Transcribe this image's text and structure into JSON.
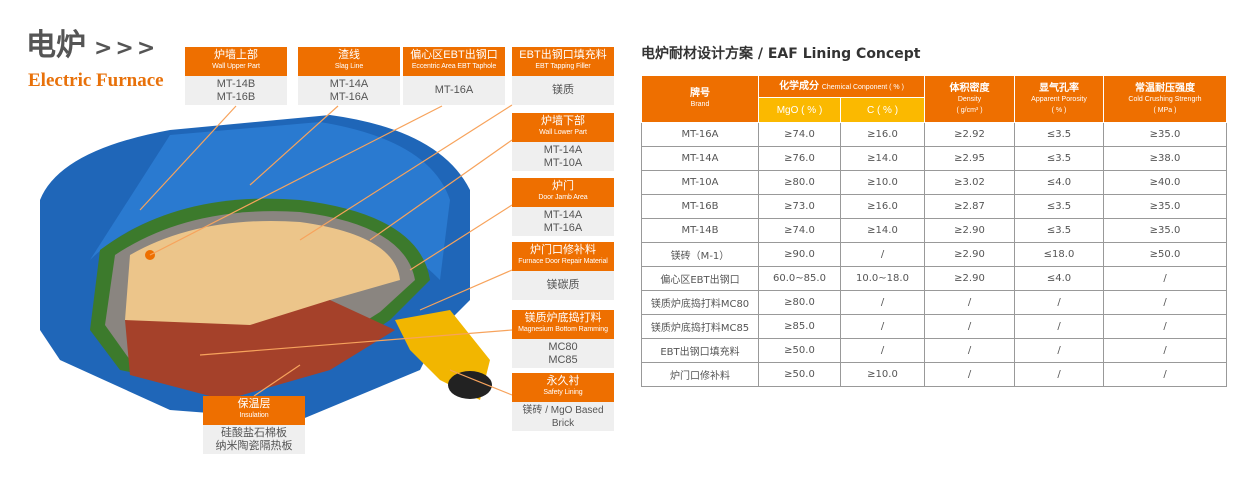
{
  "header": {
    "title_cn": "电炉",
    "arrows": ">>>",
    "title_en": "Electric Furnace"
  },
  "labels": [
    {
      "cn": "炉墙上部",
      "en": "Wall Upper Part",
      "values": [
        "MT-14B",
        "MT-16B"
      ]
    },
    {
      "cn": "渣线",
      "en": "Slag Line",
      "values": [
        "MT-14A",
        "MT-16A"
      ]
    },
    {
      "cn": "偏心区EBT出钢口",
      "en": "Eccentric Area EBT Taphole",
      "values": [
        "MT-16A"
      ]
    },
    {
      "cn": "EBT出钢口填充料",
      "en": "EBT Tapping Filler",
      "values": [
        "镁质"
      ]
    },
    {
      "cn": "炉墙下部",
      "en": "Wall Lower Part",
      "values": [
        "MT-14A",
        "MT-10A"
      ]
    },
    {
      "cn": "炉门",
      "en": "Door Jamb Area",
      "values": [
        "MT-14A",
        "MT-16A"
      ]
    },
    {
      "cn": "炉门口修补料",
      "en": "Furnace Door Repair Material",
      "values": [
        "镁碳质"
      ]
    },
    {
      "cn": "镁质炉底捣打料",
      "en": "Magnesium Bottom Ramming",
      "values": [
        "MC80",
        "MC85"
      ]
    },
    {
      "cn": "永久衬",
      "en": "Safety Lining",
      "values": [
        "镁砖 / MgO Based Brick"
      ]
    },
    {
      "cn": "保温层",
      "en": "Insulation",
      "values": [
        "硅酸盐石棉板",
        "纳米陶瓷隔热板"
      ]
    }
  ],
  "table": {
    "title": "电炉耐材设计方案 / EAF Lining Concept",
    "headers": {
      "brand": {
        "cn": "牌号",
        "en": "Brand"
      },
      "chem": {
        "cn": "化学成分",
        "en": "Chemical Conponent ( % )"
      },
      "mgo": "MgO ( % )",
      "c": "C ( % )",
      "density": {
        "cn": "体积密度",
        "en": "Density",
        "unit": "( g/cm³ )"
      },
      "porosity": {
        "cn": "显气孔率",
        "en": "Apparent Porosity",
        "unit": "( % )"
      },
      "strength": {
        "cn": "常温耐压强度",
        "en": "Cold Crushing Strengrh",
        "unit": "( MPa )"
      }
    },
    "rows": [
      [
        "MT-16A",
        "≥74.0",
        "≥16.0",
        "≥2.92",
        "≤3.5",
        "≥35.0"
      ],
      [
        "MT-14A",
        "≥76.0",
        "≥14.0",
        "≥2.95",
        "≤3.5",
        "≥38.0"
      ],
      [
        "MT-10A",
        "≥80.0",
        "≥10.0",
        "≥3.02",
        "≤4.0",
        "≥40.0"
      ],
      [
        "MT-16B",
        "≥73.0",
        "≥16.0",
        "≥2.87",
        "≤3.5",
        "≥35.0"
      ],
      [
        "MT-14B",
        "≥74.0",
        "≥14.0",
        "≥2.90",
        "≤3.5",
        "≥35.0"
      ],
      [
        "镁砖（M-1）",
        "≥90.0",
        "/",
        "≥2.90",
        "≤18.0",
        "≥50.0"
      ],
      [
        "偏心区EBT出钢口",
        "60.0~85.0",
        "10.0~18.0",
        "≥2.90",
        "≤4.0",
        "/"
      ],
      [
        "镁质炉底捣打料MC80",
        "≥80.0",
        "/",
        "/",
        "/",
        "/"
      ],
      [
        "镁质炉底捣打料MC85",
        "≥85.0",
        "/",
        "/",
        "/",
        "/"
      ],
      [
        "EBT出钢口填充料",
        "≥50.0",
        "/",
        "/",
        "/",
        "/"
      ],
      [
        "炉门口修补料",
        "≥50.0",
        "≥10.0",
        "/",
        "/",
        "/"
      ]
    ]
  },
  "colors": {
    "accent": "#ee6f00",
    "subheader": "#fbb900",
    "shell": "#1f66b8"
  }
}
